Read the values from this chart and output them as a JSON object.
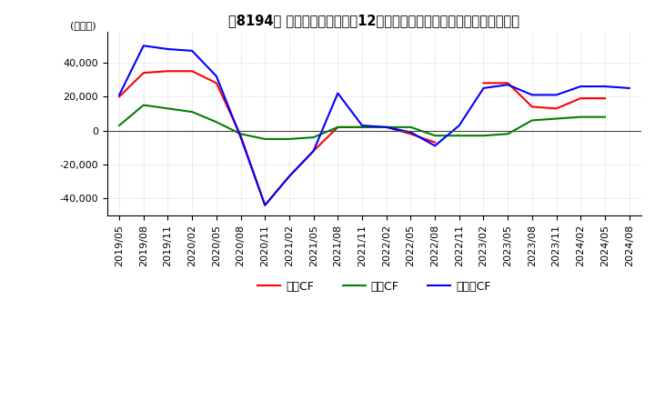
{
  "title": "【8194】 キャッシュフローの12か月移動合計の対前年同期増減額の推移",
  "ylabel": "(百万円)",
  "ylim": [
    -50000,
    58000
  ],
  "yticks": [
    -40000,
    -20000,
    0,
    20000,
    40000
  ],
  "legend_labels": [
    "営業CF",
    "投資CF",
    "フリーCF"
  ],
  "legend_colors": [
    "#ff0000",
    "#008000",
    "#0000ff"
  ],
  "dates": [
    "2019/05",
    "2019/08",
    "2019/11",
    "2020/02",
    "2020/05",
    "2020/08",
    "2020/11",
    "2021/02",
    "2021/05",
    "2021/08",
    "2021/11",
    "2022/02",
    "2022/05",
    "2022/08",
    "2022/11",
    "2023/02",
    "2023/05",
    "2023/08",
    "2023/11",
    "2024/02",
    "2024/05",
    "2024/08"
  ],
  "operating_cf": [
    20000,
    34000,
    35000,
    35000,
    28000,
    -3000,
    -44000,
    -27000,
    -12000,
    2000,
    2000,
    2000,
    -2000,
    -7000,
    null,
    28000,
    28000,
    14000,
    13000,
    19000,
    19000,
    null
  ],
  "investing_cf": [
    3000,
    15000,
    13000,
    11000,
    5000,
    -2000,
    -5000,
    -5000,
    -4000,
    2000,
    2000,
    2000,
    2000,
    -3000,
    -3000,
    -3000,
    -2000,
    6000,
    7000,
    8000,
    8000,
    null
  ],
  "free_cf": [
    21000,
    50000,
    48000,
    47000,
    32000,
    -4000,
    -44000,
    -27000,
    -12000,
    22000,
    3000,
    2000,
    -1000,
    -9000,
    3000,
    25000,
    27000,
    21000,
    21000,
    26000,
    26000,
    25000
  ],
  "background_color": "#ffffff",
  "grid_color": "#bbbbbb",
  "title_fontsize": 10.5,
  "axis_fontsize": 8
}
